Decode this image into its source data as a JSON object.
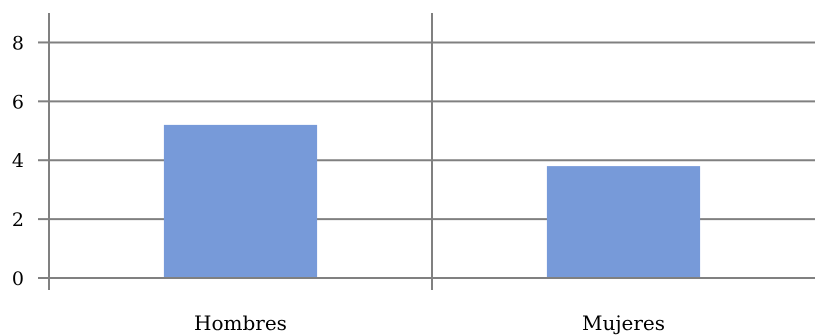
{
  "chart_data": {
    "type": "bar",
    "title": "",
    "xlabel": "",
    "ylabel": "",
    "categories": [
      "Hombres",
      "Mujeres"
    ],
    "values": [
      5.2,
      3.8
    ],
    "ylim": [
      0,
      9
    ],
    "yticks": [
      0,
      2,
      4,
      6,
      8
    ],
    "grid": true,
    "bar_color": "#779ad9",
    "grid_color": "#808080",
    "axis_color": "#808080"
  }
}
